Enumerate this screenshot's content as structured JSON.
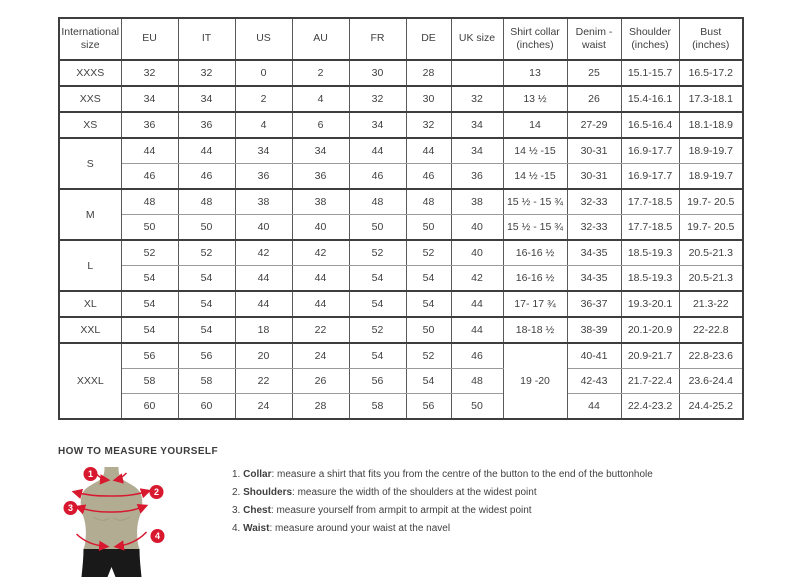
{
  "colors": {
    "accent_red": "#d7182f",
    "mannequin_khaki": "#b2ad92",
    "mannequin_shade": "#a29d82",
    "mannequin_black": "#191919",
    "border_dark": "#3e3e3e",
    "border_light": "#9b9b9b",
    "text": "#3f3f3f"
  },
  "size_table": {
    "headers": [
      "International size",
      "EU",
      "IT",
      "US",
      "AU",
      "FR",
      "DE",
      "UK size",
      "Shirt collar (inches)",
      "Denim - waist",
      "Shoulder (inches)",
      "Bust (inches)"
    ],
    "rows": [
      {
        "group_end": true,
        "cells": [
          {
            "t": "XXXS"
          },
          {
            "t": "32"
          },
          {
            "t": "32"
          },
          {
            "t": "0"
          },
          {
            "t": "2"
          },
          {
            "t": "30"
          },
          {
            "t": "28"
          },
          {
            "t": ""
          },
          {
            "t": "13"
          },
          {
            "t": "25"
          },
          {
            "t": "15.1-15.7"
          },
          {
            "t": "16.5-17.2"
          }
        ]
      },
      {
        "group_end": true,
        "cells": [
          {
            "t": "XXS"
          },
          {
            "t": "34"
          },
          {
            "t": "34"
          },
          {
            "t": "2"
          },
          {
            "t": "4"
          },
          {
            "t": "32"
          },
          {
            "t": "30"
          },
          {
            "t": "32"
          },
          {
            "t": "13 ½"
          },
          {
            "t": "26"
          },
          {
            "t": "15.4-16.1"
          },
          {
            "t": "17.3-18.1"
          }
        ]
      },
      {
        "group_end": true,
        "cells": [
          {
            "t": "XS"
          },
          {
            "t": "36"
          },
          {
            "t": "36"
          },
          {
            "t": "4"
          },
          {
            "t": "6"
          },
          {
            "t": "34"
          },
          {
            "t": "32"
          },
          {
            "t": "34"
          },
          {
            "t": "14"
          },
          {
            "t": "27-29"
          },
          {
            "t": "16.5-16.4"
          },
          {
            "t": "18.1-18.9"
          }
        ]
      },
      {
        "group_end": false,
        "cells": [
          {
            "t": "S",
            "rs": 2
          },
          {
            "t": "44"
          },
          {
            "t": "44"
          },
          {
            "t": "34"
          },
          {
            "t": "34"
          },
          {
            "t": "44"
          },
          {
            "t": "44"
          },
          {
            "t": "34"
          },
          {
            "t": "14 ½ -15"
          },
          {
            "t": "30-31"
          },
          {
            "t": "16.9-17.7"
          },
          {
            "t": "18.9-19.7"
          }
        ]
      },
      {
        "group_end": true,
        "cells": [
          {
            "t": "46"
          },
          {
            "t": "46"
          },
          {
            "t": "36"
          },
          {
            "t": "36"
          },
          {
            "t": "46"
          },
          {
            "t": "46"
          },
          {
            "t": "36"
          },
          {
            "t": "14 ½ -15"
          },
          {
            "t": "30-31"
          },
          {
            "t": "16.9-17.7"
          },
          {
            "t": "18.9-19.7"
          }
        ]
      },
      {
        "group_end": false,
        "cells": [
          {
            "t": "M",
            "rs": 2
          },
          {
            "t": "48"
          },
          {
            "t": "48"
          },
          {
            "t": "38"
          },
          {
            "t": "38"
          },
          {
            "t": "48"
          },
          {
            "t": "48"
          },
          {
            "t": "38"
          },
          {
            "t": "15 ½ - 15 ¾"
          },
          {
            "t": "32-33"
          },
          {
            "t": "17.7-18.5"
          },
          {
            "t": "19.7- 20.5"
          }
        ]
      },
      {
        "group_end": true,
        "cells": [
          {
            "t": "50"
          },
          {
            "t": "50"
          },
          {
            "t": "40"
          },
          {
            "t": "40"
          },
          {
            "t": "50"
          },
          {
            "t": "50"
          },
          {
            "t": "40"
          },
          {
            "t": "15 ½ - 15 ¾"
          },
          {
            "t": "32-33"
          },
          {
            "t": "17.7-18.5"
          },
          {
            "t": "19.7- 20.5"
          }
        ]
      },
      {
        "group_end": false,
        "cells": [
          {
            "t": "L",
            "rs": 2
          },
          {
            "t": "52"
          },
          {
            "t": "52"
          },
          {
            "t": "42"
          },
          {
            "t": "42"
          },
          {
            "t": "52"
          },
          {
            "t": "52"
          },
          {
            "t": "40"
          },
          {
            "t": "16-16 ½"
          },
          {
            "t": "34-35"
          },
          {
            "t": "18.5-19.3"
          },
          {
            "t": "20.5-21.3"
          }
        ]
      },
      {
        "group_end": true,
        "cells": [
          {
            "t": "54"
          },
          {
            "t": "54"
          },
          {
            "t": "44"
          },
          {
            "t": "44"
          },
          {
            "t": "54"
          },
          {
            "t": "54"
          },
          {
            "t": "42"
          },
          {
            "t": "16-16 ½"
          },
          {
            "t": "34-35"
          },
          {
            "t": "18.5-19.3"
          },
          {
            "t": "20.5-21.3"
          }
        ]
      },
      {
        "group_end": true,
        "cells": [
          {
            "t": "XL"
          },
          {
            "t": "54"
          },
          {
            "t": "54"
          },
          {
            "t": "44"
          },
          {
            "t": "44"
          },
          {
            "t": "54"
          },
          {
            "t": "54"
          },
          {
            "t": "44"
          },
          {
            "t": "17- 17 ¾"
          },
          {
            "t": "36-37"
          },
          {
            "t": "19.3-20.1"
          },
          {
            "t": "21.3-22"
          }
        ]
      },
      {
        "group_end": true,
        "cells": [
          {
            "t": "XXL"
          },
          {
            "t": "54"
          },
          {
            "t": "54"
          },
          {
            "t": "18"
          },
          {
            "t": "22"
          },
          {
            "t": "52"
          },
          {
            "t": "50"
          },
          {
            "t": "44"
          },
          {
            "t": "18-18 ½"
          },
          {
            "t": "38-39"
          },
          {
            "t": "20.1-20.9"
          },
          {
            "t": "22-22.8"
          }
        ]
      },
      {
        "group_end": false,
        "cells": [
          {
            "t": "XXXL",
            "rs": 3
          },
          {
            "t": "56"
          },
          {
            "t": "56"
          },
          {
            "t": "20"
          },
          {
            "t": "24"
          },
          {
            "t": "54"
          },
          {
            "t": "52"
          },
          {
            "t": "46"
          },
          {
            "t": "19 -20",
            "rs": 3
          },
          {
            "t": "40-41"
          },
          {
            "t": "20.9-21.7"
          },
          {
            "t": "22.8-23.6"
          }
        ]
      },
      {
        "group_end": false,
        "cells": [
          {
            "t": "58"
          },
          {
            "t": "58"
          },
          {
            "t": "22"
          },
          {
            "t": "26"
          },
          {
            "t": "56"
          },
          {
            "t": "54"
          },
          {
            "t": "48"
          },
          {
            "t": "42-43"
          },
          {
            "t": "21.7-22.4"
          },
          {
            "t": "23.6-24.4"
          }
        ]
      },
      {
        "group_end": true,
        "cells": [
          {
            "t": "60"
          },
          {
            "t": "60"
          },
          {
            "t": "24"
          },
          {
            "t": "28"
          },
          {
            "t": "58"
          },
          {
            "t": "56"
          },
          {
            "t": "50"
          },
          {
            "t": "44"
          },
          {
            "t": "22.4-23.2"
          },
          {
            "t": "24.4-25.2"
          }
        ]
      }
    ]
  },
  "measure_guide": {
    "heading": "HOW TO MEASURE YOURSELF",
    "steps": [
      {
        "num": "1.",
        "term": "Collar",
        "text": ": measure a shirt that fits you from the centre of the button to the end of the buttonhole"
      },
      {
        "num": "2.",
        "term": "Shoulders",
        "text": ": measure the width of the shoulders at the widest point"
      },
      {
        "num": "3.",
        "term": "Chest",
        "text": ": measure yourself from armpit to armpit at the widest point"
      },
      {
        "num": "4.",
        "term": "Waist",
        "text": ": measure around your waist at the navel"
      }
    ],
    "figure_markers": [
      "1",
      "2",
      "3",
      "4"
    ]
  }
}
